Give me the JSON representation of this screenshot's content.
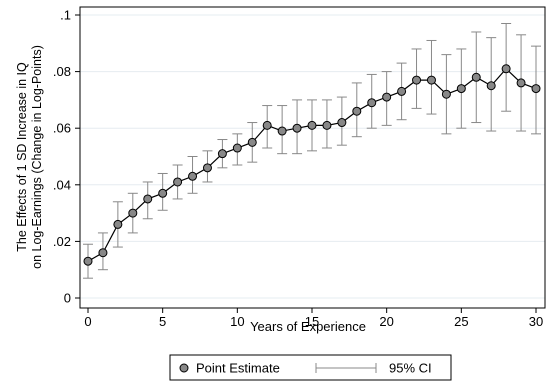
{
  "chart_data": {
    "type": "scatter",
    "xlabel": "Years of Experience",
    "ylabel_lines": [
      "The Effects of 1 SD Increase in IQ",
      "on Log-Earnings (Change in Log-Points)"
    ],
    "xlim": [
      0,
      30
    ],
    "ylim": [
      0,
      0.1
    ],
    "xticks": [
      0,
      5,
      10,
      15,
      20,
      25,
      30
    ],
    "yticks": [
      0,
      0.02,
      0.04,
      0.06,
      0.08,
      0.1
    ],
    "ytick_labels": [
      "0",
      ".02",
      ".04",
      ".06",
      ".08",
      ".1"
    ],
    "grid": true,
    "legend_position": "bottom",
    "series": [
      {
        "name": "Point Estimate",
        "marker": "circle",
        "color": "#888888",
        "line_color": "#000000",
        "x": [
          0,
          1,
          2,
          3,
          4,
          5,
          6,
          7,
          8,
          9,
          10,
          11,
          12,
          13,
          14,
          15,
          16,
          17,
          18,
          19,
          20,
          21,
          22,
          23,
          24,
          25,
          26,
          27,
          28,
          29,
          30
        ],
        "values": [
          0.013,
          0.016,
          0.026,
          0.03,
          0.035,
          0.037,
          0.041,
          0.043,
          0.046,
          0.051,
          0.053,
          0.055,
          0.061,
          0.059,
          0.06,
          0.061,
          0.061,
          0.062,
          0.066,
          0.069,
          0.071,
          0.073,
          0.077,
          0.077,
          0.072,
          0.074,
          0.078,
          0.075,
          0.081,
          0.076,
          0.074
        ]
      },
      {
        "name": "95% CI",
        "type": "errorbar",
        "color": "#888888",
        "lower": [
          0.007,
          0.01,
          0.018,
          0.023,
          0.028,
          0.031,
          0.035,
          0.037,
          0.041,
          0.046,
          0.047,
          0.048,
          0.053,
          0.051,
          0.051,
          0.052,
          0.053,
          0.054,
          0.057,
          0.06,
          0.061,
          0.063,
          0.067,
          0.065,
          0.058,
          0.06,
          0.062,
          0.059,
          0.066,
          0.059,
          0.058
        ],
        "upper": [
          0.019,
          0.023,
          0.034,
          0.037,
          0.041,
          0.044,
          0.047,
          0.05,
          0.052,
          0.056,
          0.058,
          0.062,
          0.068,
          0.068,
          0.07,
          0.07,
          0.07,
          0.071,
          0.076,
          0.079,
          0.08,
          0.083,
          0.088,
          0.091,
          0.086,
          0.088,
          0.094,
          0.092,
          0.097,
          0.093,
          0.089
        ]
      }
    ],
    "colors": {
      "background": "#ffffff",
      "grid": "#e6ecf0",
      "axis": "#000000"
    }
  }
}
